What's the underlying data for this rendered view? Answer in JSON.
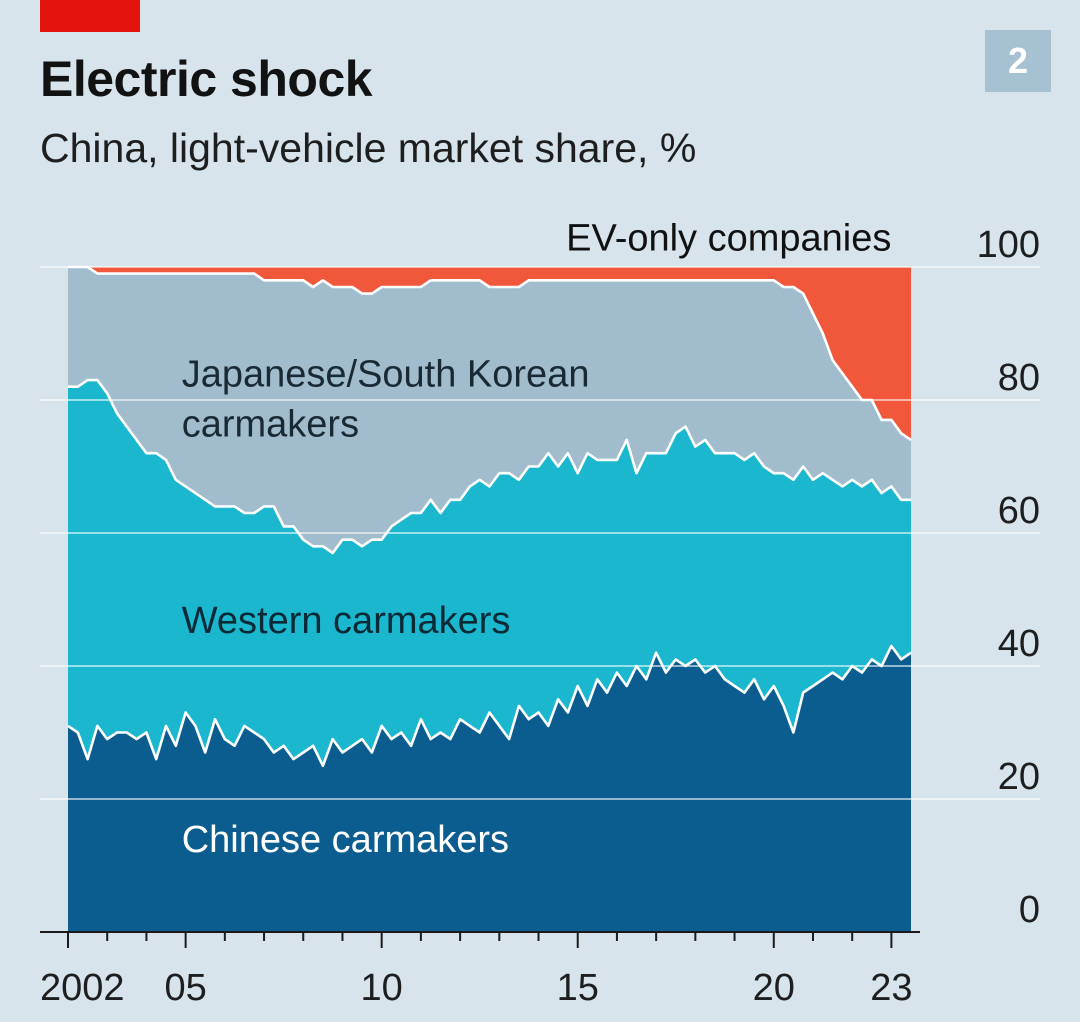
{
  "header": {
    "title": "Electric shock",
    "subtitle": "China, light-vehicle market share, %",
    "chart_number": "2"
  },
  "colors": {
    "background": "#d7e4ec",
    "accent_red_tab": "#e3120b",
    "chart_number_box": "#a6c1d1",
    "chinese": "#0c5d8f",
    "western": "#1ab7cf",
    "japanese_korean": "#a0bccd",
    "ev_only": "#f1583b",
    "boundary_line": "#ffffff",
    "gridline": "#ffffff",
    "axis": "#1a1a1a"
  },
  "chart_data": {
    "type": "area",
    "stacked": true,
    "title": "Electric shock",
    "subtitle": "China, light-vehicle market share, %",
    "ylabel": "",
    "xlabel": "",
    "ylim": [
      0,
      100
    ],
    "xlim": [
      2002,
      2023.6
    ],
    "y_ticks": [
      0,
      20,
      40,
      60,
      80,
      100
    ],
    "y_axis_side": "right",
    "x_tick_labels": [
      {
        "value": 2002,
        "label": "2002"
      },
      {
        "value": 2005,
        "label": "05"
      },
      {
        "value": 2010,
        "label": "10"
      },
      {
        "value": 2015,
        "label": "15"
      },
      {
        "value": 2020,
        "label": "20"
      },
      {
        "value": 2023,
        "label": "23"
      }
    ],
    "x_minor_ticks": [
      2002,
      2003,
      2004,
      2005,
      2006,
      2007,
      2008,
      2009,
      2010,
      2011,
      2012,
      2013,
      2014,
      2015,
      2016,
      2017,
      2018,
      2019,
      2020,
      2021,
      2022,
      2023
    ],
    "grid": true,
    "series_labels": [
      {
        "text": "Chinese carmakers",
        "color": "#ffffff",
        "x": 2004.9,
        "y": 12
      },
      {
        "text": "Western carmakers",
        "color": "#0a2a35",
        "x": 2004.9,
        "y": 45
      },
      {
        "text": "Japanese/South Korean",
        "color": "#1a2a35",
        "x": 2004.9,
        "y": 82
      },
      {
        "text": "carmakers",
        "color": "#1a2a35",
        "x": 2004.9,
        "y": 74.5
      },
      {
        "text": "EV-only companies",
        "color": "#111111",
        "x": 2023,
        "y": 102.5,
        "anchor": "end"
      }
    ],
    "x": [
      2002.0,
      2002.25,
      2002.5,
      2002.75,
      2003.0,
      2003.25,
      2003.5,
      2003.75,
      2004.0,
      2004.25,
      2004.5,
      2004.75,
      2005.0,
      2005.25,
      2005.5,
      2005.75,
      2006.0,
      2006.25,
      2006.5,
      2006.75,
      2007.0,
      2007.25,
      2007.5,
      2007.75,
      2008.0,
      2008.25,
      2008.5,
      2008.75,
      2009.0,
      2009.25,
      2009.5,
      2009.75,
      2010.0,
      2010.25,
      2010.5,
      2010.75,
      2011.0,
      2011.25,
      2011.5,
      2011.75,
      2012.0,
      2012.25,
      2012.5,
      2012.75,
      2013.0,
      2013.25,
      2013.5,
      2013.75,
      2014.0,
      2014.25,
      2014.5,
      2014.75,
      2015.0,
      2015.25,
      2015.5,
      2015.75,
      2016.0,
      2016.25,
      2016.5,
      2016.75,
      2017.0,
      2017.25,
      2017.5,
      2017.75,
      2018.0,
      2018.25,
      2018.5,
      2018.75,
      2019.0,
      2019.25,
      2019.5,
      2019.75,
      2020.0,
      2020.25,
      2020.5,
      2020.75,
      2021.0,
      2021.25,
      2021.5,
      2021.75,
      2022.0,
      2022.25,
      2022.5,
      2022.75,
      2023.0,
      2023.25,
      2023.5
    ],
    "series": [
      {
        "name": "Chinese carmakers",
        "values": [
          31,
          30,
          26,
          31,
          29,
          30,
          30,
          29,
          30,
          26,
          31,
          28,
          33,
          31,
          27,
          32,
          29,
          28,
          31,
          30,
          29,
          27,
          28,
          26,
          27,
          28,
          25,
          29,
          27,
          28,
          29,
          27,
          31,
          29,
          30,
          28,
          32,
          29,
          30,
          29,
          32,
          31,
          30,
          33,
          31,
          29,
          34,
          32,
          33,
          31,
          35,
          33,
          37,
          34,
          38,
          36,
          39,
          37,
          40,
          38,
          42,
          39,
          41,
          40,
          41,
          39,
          40,
          38,
          37,
          36,
          38,
          35,
          37,
          34,
          30,
          36,
          37,
          38,
          39,
          38,
          40,
          39,
          41,
          40,
          43,
          41,
          42
        ]
      },
      {
        "name": "Western carmakers",
        "values": [
          51,
          52,
          57,
          52,
          52,
          48,
          46,
          45,
          42,
          46,
          40,
          40,
          34,
          35,
          38,
          32,
          35,
          36,
          32,
          33,
          35,
          37,
          33,
          35,
          32,
          30,
          33,
          28,
          32,
          31,
          29,
          32,
          28,
          32,
          32,
          35,
          31,
          36,
          33,
          36,
          33,
          36,
          38,
          34,
          38,
          40,
          34,
          38,
          37,
          41,
          35,
          39,
          32,
          38,
          33,
          35,
          32,
          37,
          29,
          34,
          30,
          33,
          34,
          36,
          32,
          35,
          32,
          34,
          35,
          35,
          34,
          35,
          32,
          35,
          38,
          34,
          31,
          31,
          29,
          29,
          28,
          28,
          27,
          26,
          24,
          24,
          23
        ]
      },
      {
        "name": "Japanese/South Korean carmakers",
        "values": [
          18,
          18,
          17,
          16,
          18,
          21,
          23,
          25,
          27,
          27,
          28,
          31,
          32,
          33,
          34,
          35,
          35,
          35,
          36,
          36,
          34,
          34,
          37,
          37,
          39,
          39,
          40,
          40,
          38,
          38,
          38,
          37,
          38,
          36,
          35,
          34,
          34,
          33,
          35,
          33,
          33,
          31,
          30,
          30,
          28,
          28,
          29,
          28,
          28,
          26,
          28,
          26,
          29,
          26,
          27,
          27,
          27,
          24,
          29,
          26,
          26,
          26,
          23,
          22,
          25,
          24,
          26,
          26,
          26,
          27,
          26,
          28,
          29,
          28,
          29,
          26,
          25,
          21,
          18,
          17,
          14,
          13,
          12,
          11,
          10,
          10,
          9
        ]
      },
      {
        "name": "EV-only companies",
        "values": [
          0,
          0,
          0,
          1,
          1,
          1,
          1,
          1,
          1,
          1,
          1,
          1,
          1,
          1,
          1,
          1,
          1,
          1,
          1,
          1,
          2,
          2,
          2,
          2,
          2,
          3,
          2,
          3,
          3,
          3,
          4,
          4,
          3,
          3,
          3,
          3,
          3,
          2,
          2,
          2,
          2,
          2,
          2,
          3,
          3,
          3,
          3,
          2,
          2,
          2,
          2,
          2,
          2,
          2,
          2,
          2,
          2,
          2,
          2,
          2,
          2,
          2,
          2,
          2,
          2,
          2,
          2,
          2,
          2,
          2,
          2,
          2,
          2,
          3,
          3,
          4,
          7,
          10,
          14,
          16,
          18,
          20,
          20,
          23,
          23,
          25,
          26
        ]
      }
    ]
  }
}
